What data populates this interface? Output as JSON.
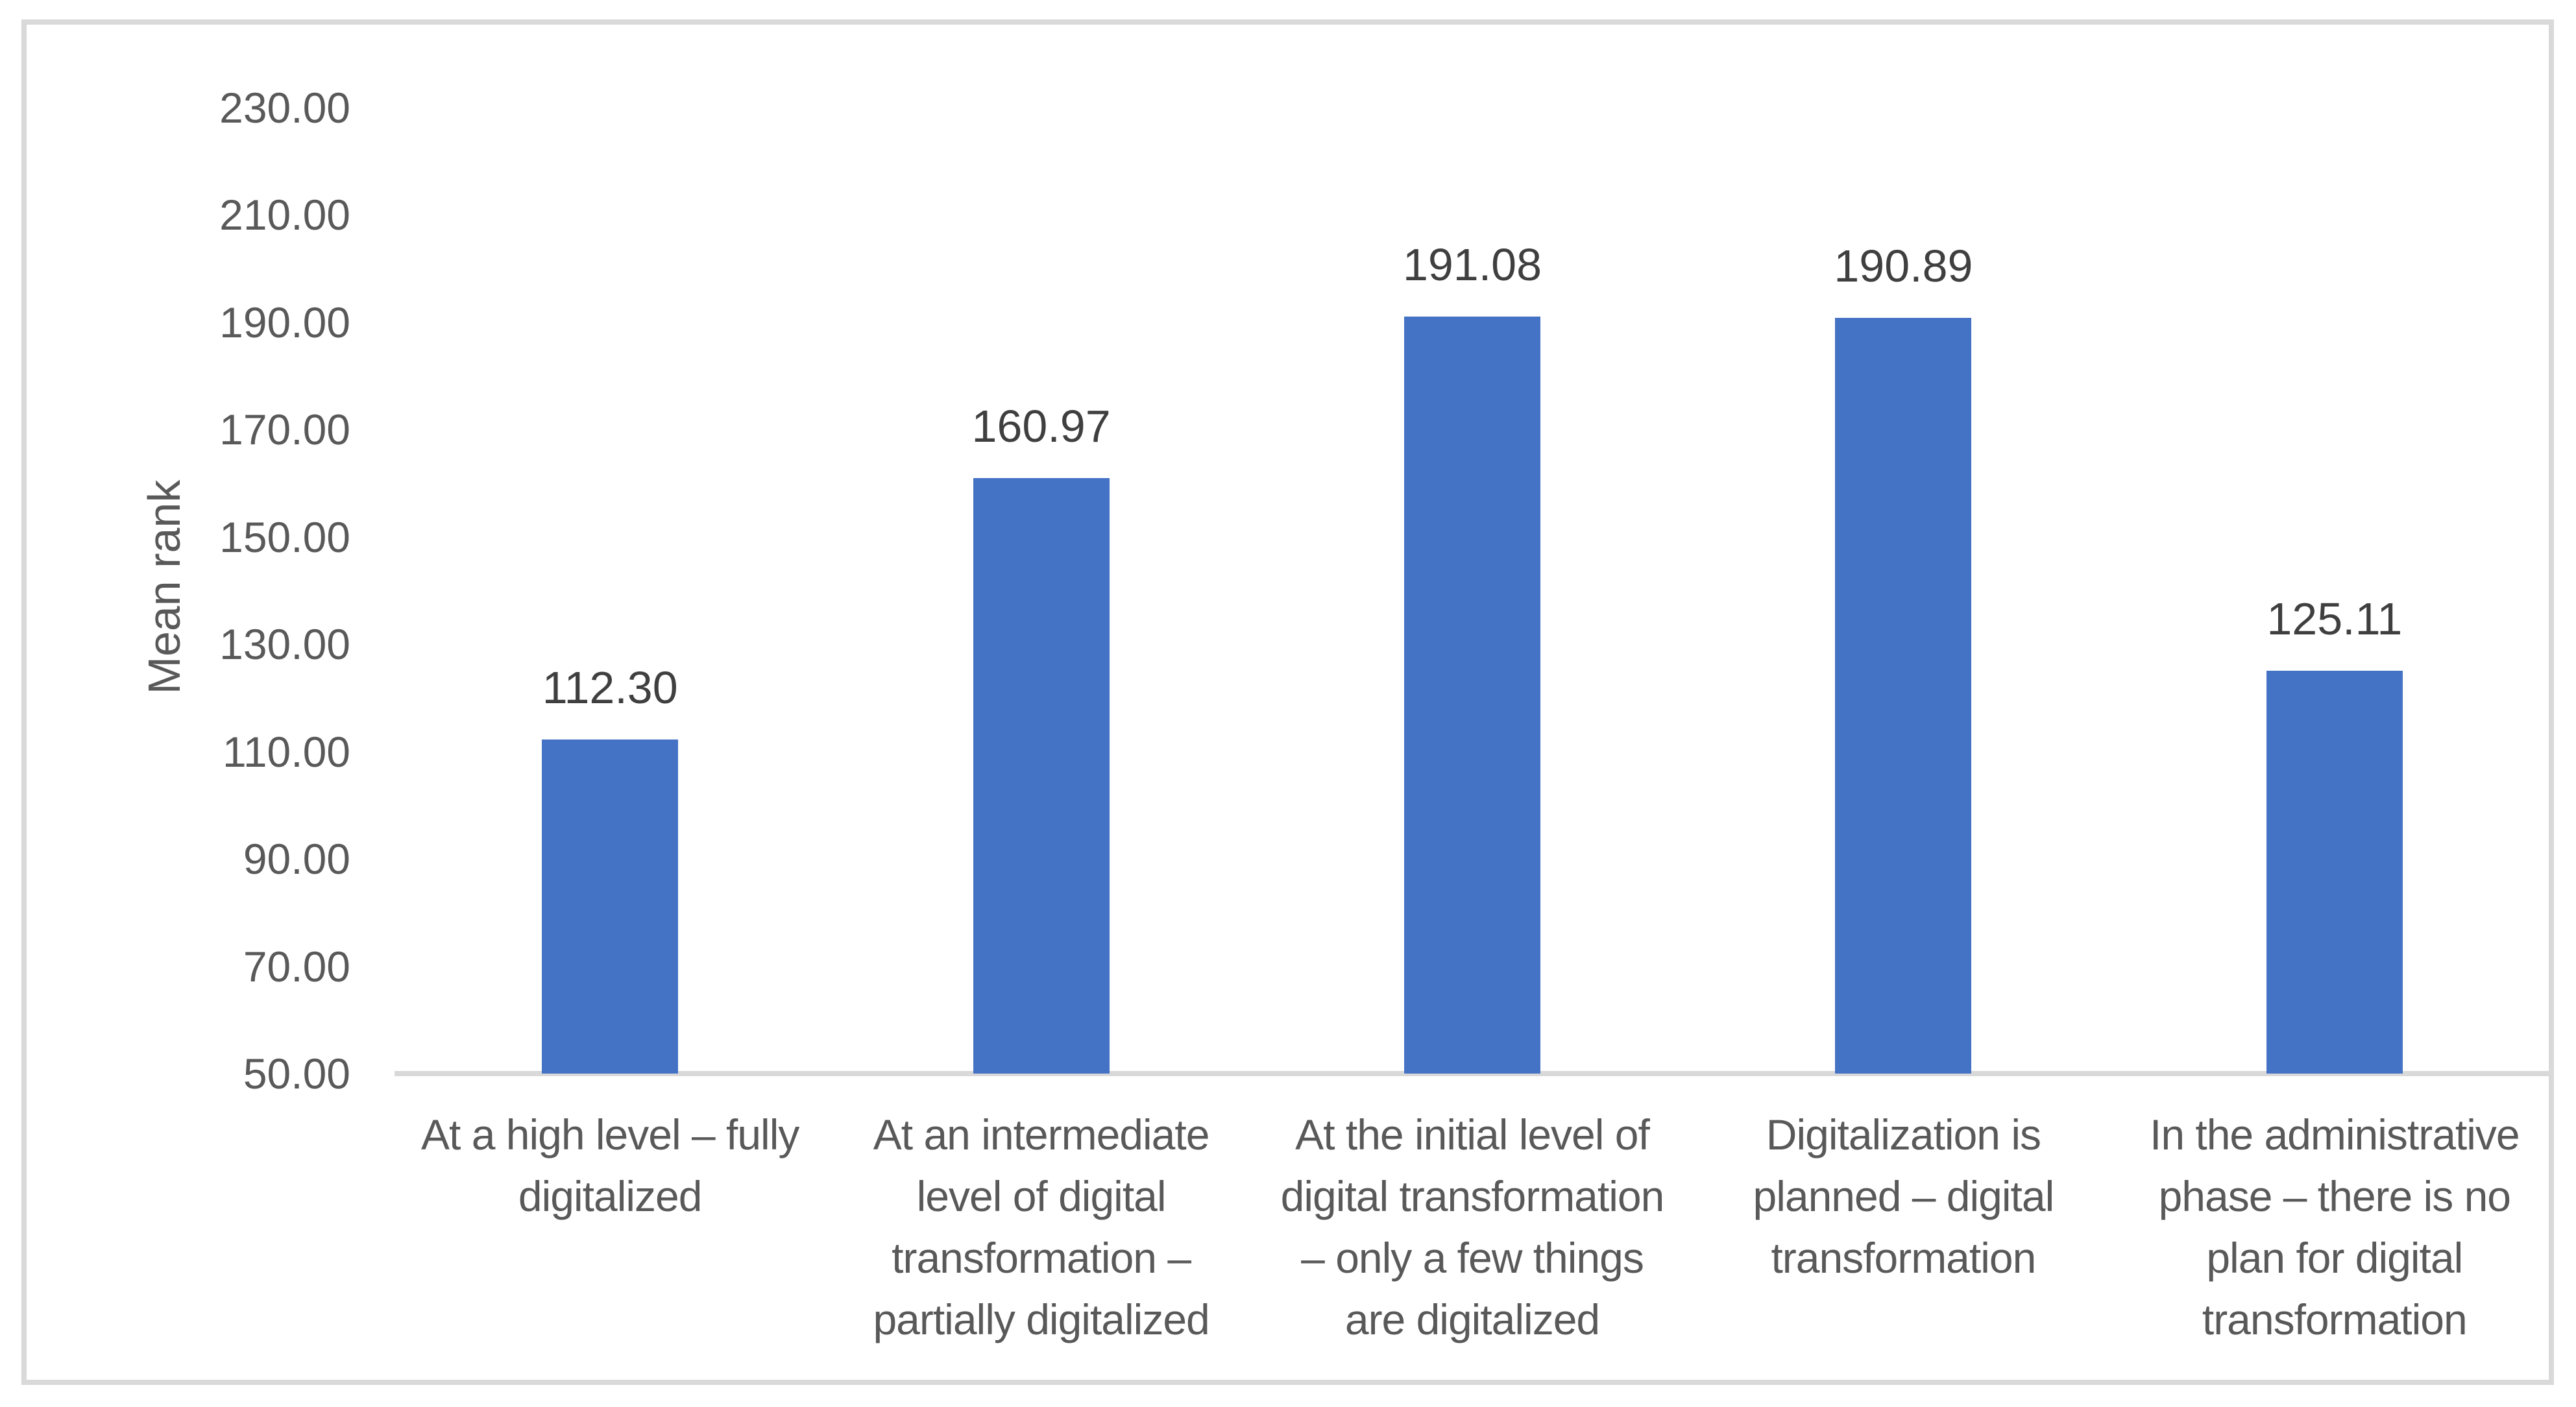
{
  "chart_data": {
    "type": "bar",
    "title": "",
    "xlabel": "",
    "ylabel": "Mean rank",
    "ylim": [
      50,
      230
    ],
    "ytick_step": 20,
    "y_ticks": [
      "230.00",
      "210.00",
      "190.00",
      "170.00",
      "150.00",
      "130.00",
      "110.00",
      "90.00",
      "70.00",
      "50.00"
    ],
    "categories": [
      "At a high level – fully digitalized",
      "At an intermediate level of digital transformation – partially digitalized",
      "At the initial level of digital transformation – only a few things are digitalized",
      "Digitalization is planned – digital transformation",
      "In the administrative phase – there is no plan for digital transformation"
    ],
    "category_lines": [
      [
        "At a high level – fully",
        "digitalized"
      ],
      [
        "At an intermediate",
        "level of digital",
        "transformation –",
        "partially digitalized"
      ],
      [
        "At the initial level of",
        "digital transformation",
        "– only a few things",
        "are digitalized"
      ],
      [
        "Digitalization is",
        "planned – digital",
        "transformation"
      ],
      [
        "In the administrative",
        "phase – there is no",
        "plan for digital",
        "transformation"
      ]
    ],
    "values": [
      112.3,
      160.97,
      191.08,
      190.89,
      125.11
    ],
    "value_labels": [
      "112.30",
      "160.97",
      "191.08",
      "190.89",
      "125.11"
    ],
    "legend": false,
    "grid": false
  },
  "colors": {
    "bar": "#4472C4",
    "axis_line": "#D9D9D9",
    "frame_border": "#D9D9D9",
    "tick_text": "#595959",
    "category_text": "#595959",
    "data_label_text": "#3F3F3F",
    "background": "#FFFFFF"
  }
}
